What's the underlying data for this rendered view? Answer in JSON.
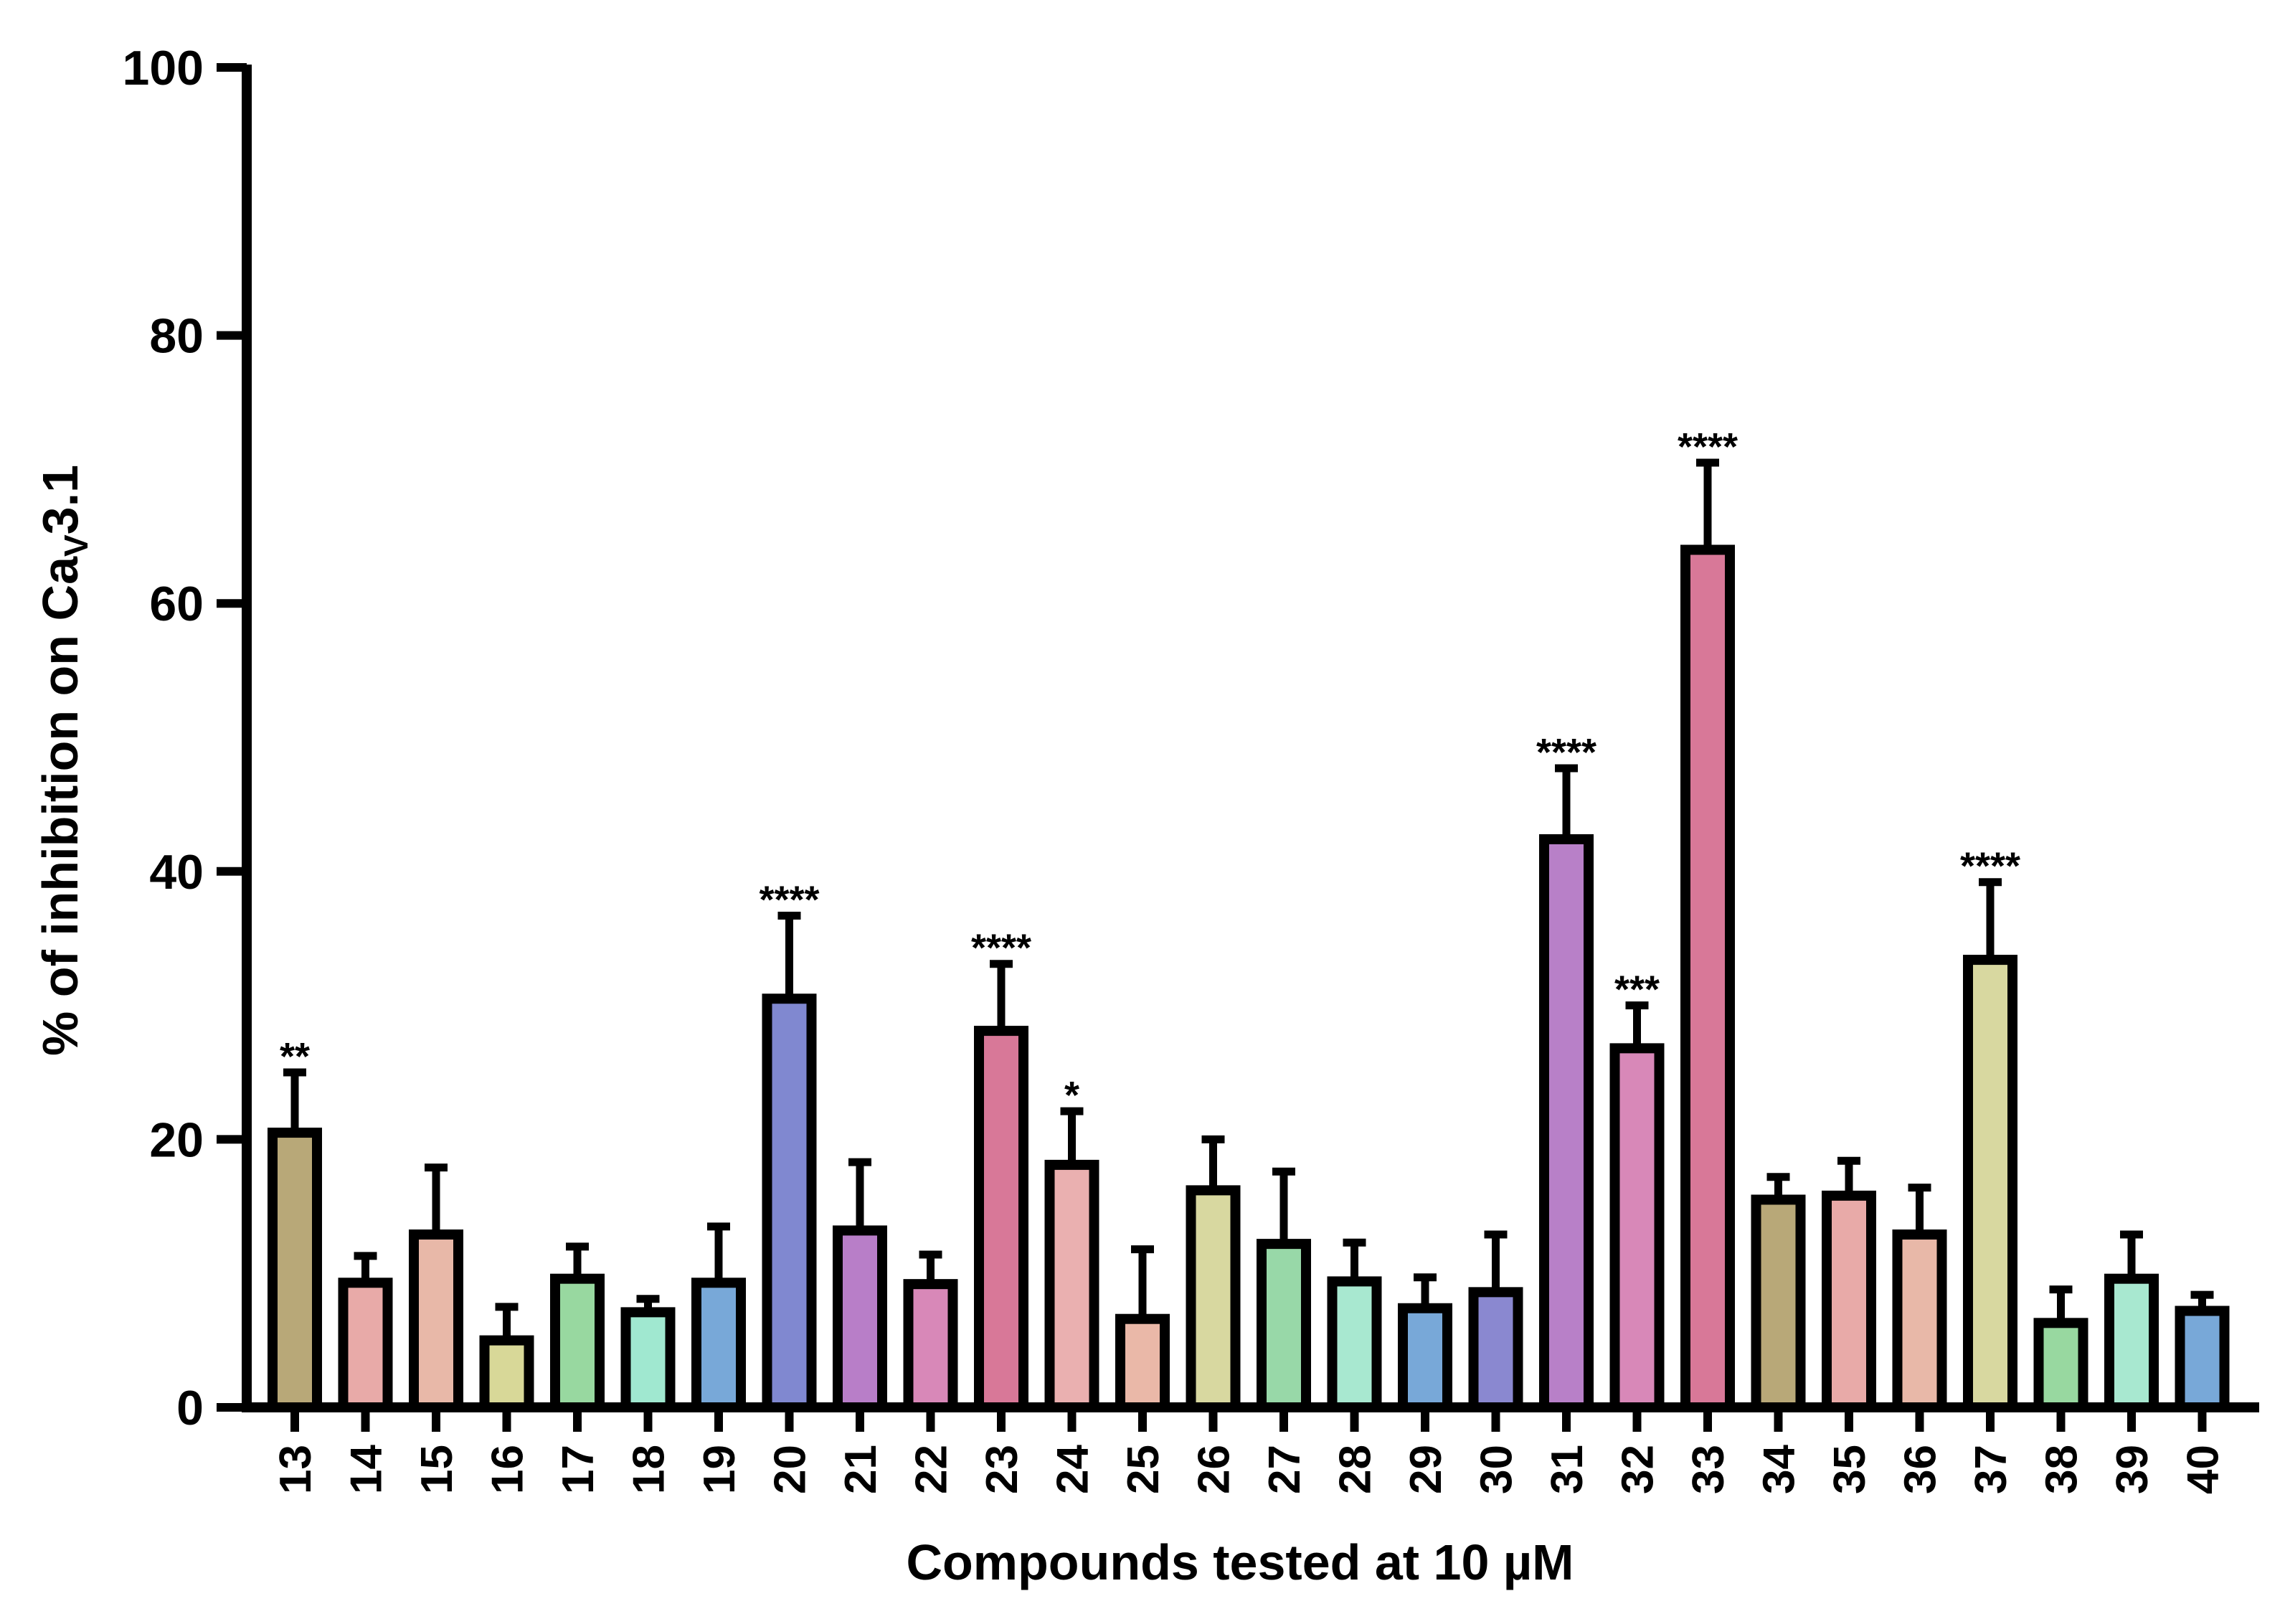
{
  "chart_data": {
    "type": "bar",
    "ylabel_main": "% of inhibition on Ca",
    "ylabel_sub": "V",
    "ylabel_tail": "3.1",
    "xlabel": "Compounds tested at 10 µM",
    "ylim": [
      0,
      100
    ],
    "yticks": [
      0,
      20,
      40,
      60,
      80,
      100
    ],
    "grid": false,
    "categories": [
      "13",
      "14",
      "15",
      "16",
      "17",
      "18",
      "19",
      "20",
      "21",
      "22",
      "23",
      "24",
      "25",
      "26",
      "27",
      "28",
      "29",
      "30",
      "31",
      "32",
      "33",
      "34",
      "35",
      "36",
      "37",
      "38",
      "39",
      "40"
    ],
    "values": [
      20.5,
      9.3,
      12.9,
      5.0,
      9.6,
      7.1,
      9.3,
      30.5,
      13.2,
      9.2,
      28.1,
      18.1,
      6.6,
      16.2,
      12.2,
      9.4,
      7.4,
      8.6,
      42.4,
      26.8,
      64.0,
      15.5,
      15.8,
      12.9,
      33.4,
      6.3,
      9.6,
      7.2
    ],
    "errors": [
      4.5,
      2.0,
      5.0,
      2.5,
      2.4,
      1.0,
      4.2,
      6.2,
      5.1,
      2.2,
      5.0,
      4.0,
      5.2,
      3.8,
      5.4,
      2.9,
      2.3,
      4.3,
      5.3,
      3.2,
      6.5,
      1.7,
      2.6,
      3.5,
      5.8,
      2.5,
      3.3,
      1.2
    ],
    "colors": [
      "#b8a878",
      "#e8aaa8",
      "#e8b8a8",
      "#d8d898",
      "#98d8a0",
      "#a0e8d0",
      "#78a8d8",
      "#8088d0",
      "#b87ec8",
      "#d888b8",
      "#d87898",
      "#eab0b0",
      "#eab8a8",
      "#d8d8a0",
      "#98d8a8",
      "#a8e8d0",
      "#78a8d8",
      "#8a88d0",
      "#b880c8",
      "#d888b8",
      "#d87898",
      "#b8a878",
      "#e8aaa8",
      "#e8b8a8",
      "#d8d8a0",
      "#98d8a0",
      "#a8e8d0",
      "#78a8d8"
    ],
    "significance": [
      "**",
      "",
      "",
      "",
      "",
      "",
      "",
      "****",
      "",
      "",
      "****",
      "*",
      "",
      "",
      "",
      "",
      "",
      "",
      "****",
      "***",
      "****",
      "",
      "",
      "",
      "****",
      "",
      "",
      ""
    ]
  }
}
